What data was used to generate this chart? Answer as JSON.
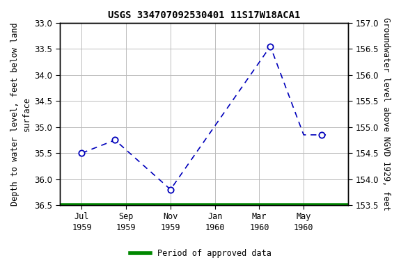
{
  "title": "USGS 334707092530401 11S17W18ACA1",
  "ylabel_left": "Depth to water level, feet below land\nsurface",
  "ylabel_right": "Groundwater level above NGVD 1929, feet",
  "ylim_left": [
    33.0,
    36.5
  ],
  "ylim_right": [
    153.5,
    157.0
  ],
  "yticks_left": [
    33.0,
    33.5,
    34.0,
    34.5,
    35.0,
    35.5,
    36.0,
    36.5
  ],
  "yticks_right": [
    153.5,
    154.0,
    154.5,
    155.0,
    155.5,
    156.0,
    156.5,
    157.0
  ],
  "xtick_labels": [
    "Jul\n1959",
    "Sep\n1959",
    "Nov\n1959",
    "Jan\n1960",
    "Mar\n1960",
    "May\n1960"
  ],
  "xtick_positions": [
    1,
    3,
    5,
    7,
    9,
    11
  ],
  "x_data_line": [
    1.0,
    2.5,
    5.0,
    9.5,
    11.0,
    12.0
  ],
  "y_data_line": [
    35.5,
    35.25,
    36.2,
    33.45,
    35.15,
    35.15
  ],
  "marker_x": [
    1.0,
    2.5,
    5.0,
    9.5,
    11.8
  ],
  "marker_y": [
    35.5,
    35.25,
    36.2,
    33.45,
    35.15
  ],
  "green_line_y": 36.5,
  "line_color": "#0000bb",
  "marker_color": "#0000bb",
  "green_color": "#008800",
  "background_color": "#ffffff",
  "grid_color": "#bbbbbb",
  "legend_label": "Period of approved data",
  "title_fontsize": 10,
  "axis_label_fontsize": 8.5,
  "tick_fontsize": 8.5,
  "xlim": [
    0.0,
    13.0
  ]
}
